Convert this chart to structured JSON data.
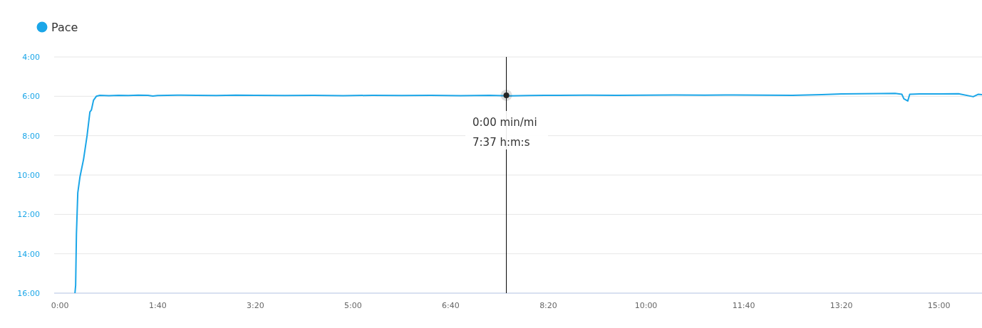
{
  "chart_data": {
    "type": "line",
    "legend": "top left",
    "grid": "y",
    "marker": "none",
    "xlim": [
      -6,
      944
    ],
    "xticks": [
      {
        "value": 0,
        "label": "0:00"
      },
      {
        "value": 100,
        "label": "1:40"
      },
      {
        "value": 200,
        "label": "3:20"
      },
      {
        "value": 300,
        "label": "5:00"
      },
      {
        "value": 400,
        "label": "6:40"
      },
      {
        "value": 500,
        "label": "8:20"
      },
      {
        "value": 600,
        "label": "10:00"
      },
      {
        "value": 700,
        "label": "11:40"
      },
      {
        "value": 800,
        "label": "13:20"
      },
      {
        "value": 900,
        "label": "15:00"
      }
    ],
    "ylim": [
      16,
      4
    ],
    "yticks": [
      {
        "value": 4,
        "label": "4:00"
      },
      {
        "value": 6,
        "label": "6:00"
      },
      {
        "value": 8,
        "label": "8:00"
      },
      {
        "value": 10,
        "label": "10:00"
      },
      {
        "value": 12,
        "label": "12:00"
      },
      {
        "value": 14,
        "label": "14:00"
      },
      {
        "value": 16,
        "label": "16:00"
      }
    ],
    "ref_lines": [
      {
        "axis": "x",
        "value": 457,
        "color": "#000000"
      }
    ],
    "annotations": [
      "0:00 min/mi",
      "7:37 h:m:s"
    ],
    "series": [
      {
        "name": "Pace",
        "color": "#1ba6e8",
        "x": [
          15.3,
          16.0,
          16.8,
          18.2,
          20.4,
          24.1,
          27.7,
          30.6,
          32.1,
          34.3,
          37.2,
          40.8,
          50,
          60,
          70,
          80,
          90,
          95,
          100,
          120,
          140,
          160,
          180,
          200,
          230,
          260,
          290,
          320,
          350,
          380,
          410,
          440,
          460,
          480,
          510,
          540,
          570,
          600,
          630,
          660,
          690,
          720,
          750,
          780,
          800,
          820,
          840,
          855,
          862,
          864,
          868,
          870,
          880,
          900,
          920,
          935,
          940,
          944
        ],
        "values": [
          16,
          15.6,
          13.0,
          10.9,
          10.1,
          9.2,
          8.0,
          6.8,
          6.7,
          6.2,
          6.0,
          5.95,
          5.97,
          5.95,
          5.96,
          5.94,
          5.95,
          5.99,
          5.96,
          5.94,
          5.95,
          5.96,
          5.94,
          5.95,
          5.96,
          5.95,
          5.97,
          5.95,
          5.96,
          5.95,
          5.97,
          5.95,
          5.98,
          5.96,
          5.95,
          5.94,
          5.95,
          5.94,
          5.93,
          5.94,
          5.93,
          5.94,
          5.95,
          5.92,
          5.88,
          5.87,
          5.86,
          5.85,
          5.9,
          6.13,
          6.24,
          5.9,
          5.88,
          5.88,
          5.87,
          6.02,
          5.9,
          5.92
        ]
      },
      {
        "type": "scatter",
        "color": "#222222",
        "marker": "circle",
        "x": [
          457
        ],
        "values": [
          5.95
        ]
      }
    ]
  }
}
